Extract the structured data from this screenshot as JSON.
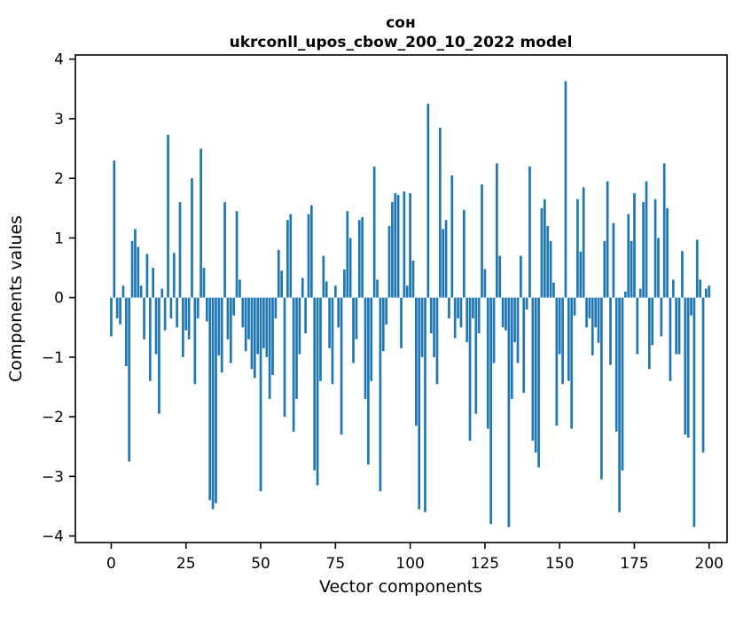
{
  "figure": {
    "title": "сон",
    "subtitle": "ukrconll_upos_cbow_200_10_2022 model",
    "xlabel": "Vector components",
    "ylabel": "Components values",
    "background": "#ffffff"
  },
  "chart_data": {
    "type": "bar",
    "title": "сон",
    "subtitle": "ukrconll_upos_cbow_200_10_2022 model",
    "xlabel": "Vector components",
    "ylabel": "Components values",
    "bar_color": "#1f77b4",
    "grid": false,
    "legend": null,
    "x_range": [
      0,
      200
    ],
    "xlim": [
      -12,
      206
    ],
    "ylim": [
      -4.11,
      4.07
    ],
    "xticks": [
      0,
      25,
      50,
      75,
      100,
      125,
      150,
      175,
      200
    ],
    "yticks": [
      -4,
      -3,
      -2,
      -1,
      0,
      1,
      2,
      3,
      4
    ],
    "values": [
      -0.65,
      2.3,
      -0.35,
      -0.45,
      0.2,
      -1.15,
      -2.75,
      0.95,
      1.15,
      0.85,
      0.2,
      -0.7,
      0.73,
      -1.4,
      0.5,
      -0.95,
      -1.95,
      0.15,
      -0.55,
      2.73,
      -0.35,
      0.75,
      -0.5,
      1.6,
      -1.0,
      -0.55,
      -0.7,
      2.0,
      -1.45,
      -0.35,
      2.5,
      0.5,
      -0.4,
      -3.4,
      -3.55,
      -3.45,
      -0.97,
      -1.26,
      1.6,
      -0.7,
      -1.1,
      -0.3,
      1.45,
      0.3,
      -0.5,
      -0.9,
      -0.7,
      -1.2,
      -1.35,
      -0.95,
      -3.25,
      -0.85,
      -1.0,
      -1.7,
      -1.3,
      -0.35,
      0.8,
      0.45,
      -2.0,
      1.3,
      1.4,
      -2.25,
      -1.7,
      -0.95,
      0.33,
      -0.6,
      1.4,
      1.55,
      -2.9,
      -3.15,
      -1.4,
      0.7,
      0.27,
      -0.85,
      -1.45,
      0.2,
      -0.5,
      -2.3,
      0.47,
      1.45,
      1.0,
      -1.1,
      -0.7,
      1.3,
      1.35,
      -1.7,
      -2.8,
      -1.4,
      2.2,
      0.3,
      -3.25,
      -0.9,
      -0.45,
      1.2,
      1.6,
      1.75,
      1.72,
      -0.85,
      1.78,
      0.2,
      1.75,
      0.62,
      -2.15,
      -3.55,
      -1.0,
      -3.6,
      3.25,
      -0.6,
      -1.0,
      -1.45,
      2.85,
      1.15,
      1.3,
      -0.35,
      2.05,
      -0.68,
      -0.35,
      -0.5,
      1.47,
      -0.75,
      -2.4,
      -0.35,
      -1.95,
      -0.6,
      1.9,
      0.48,
      -2.2,
      -3.8,
      -1.1,
      2.25,
      0.7,
      -0.5,
      -0.55,
      -3.85,
      -1.7,
      -0.75,
      -1.1,
      0.7,
      -1.6,
      -0.2,
      2.2,
      -2.4,
      -2.6,
      -2.85,
      1.5,
      1.65,
      1.2,
      0.95,
      0.25,
      -2.15,
      -0.95,
      -1.45,
      3.63,
      -1.4,
      -2.2,
      -0.3,
      1.65,
      0.77,
      1.85,
      -0.5,
      -0.35,
      -0.97,
      -0.5,
      -0.76,
      -3.05,
      0.95,
      1.95,
      -1.13,
      1.25,
      -2.25,
      -3.6,
      -2.9,
      0.1,
      1.4,
      0.95,
      1.75,
      -0.95,
      0.15,
      1.6,
      1.95,
      -1.2,
      -0.8,
      1.65,
      1.0,
      -0.65,
      2.25,
      1.5,
      -1.4,
      0.3,
      -0.95,
      -0.95,
      0.78,
      -2.3,
      -2.35,
      -0.3,
      -3.85,
      0.97,
      0.3,
      -2.6,
      0.15,
      0.2
    ]
  }
}
